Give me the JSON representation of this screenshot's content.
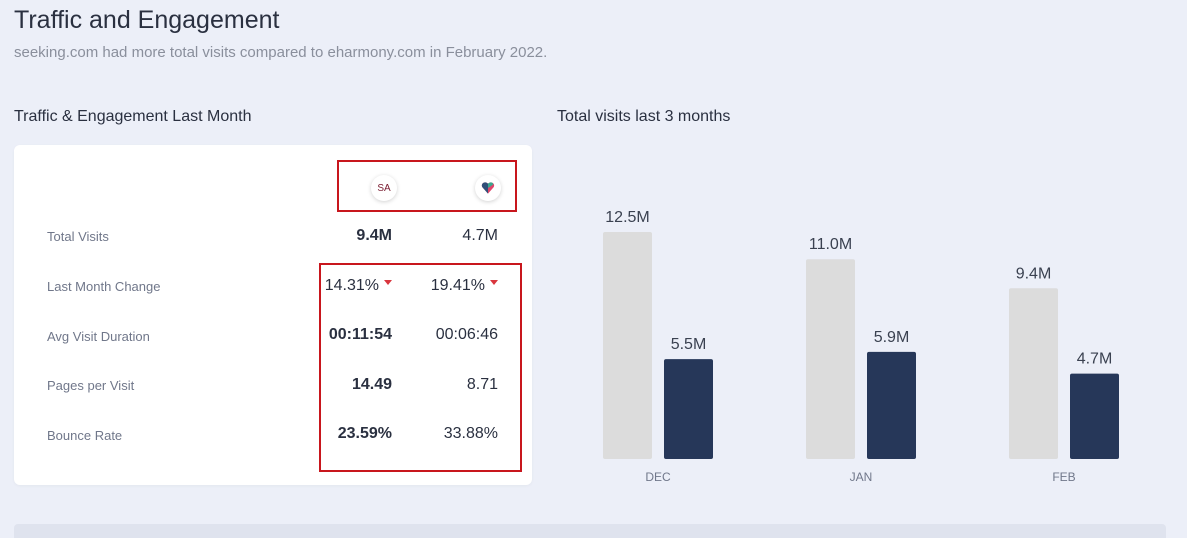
{
  "header": {
    "title": "Traffic and Engagement",
    "subtitle": "seeking.com had more total visits compared to eharmony.com in February 2022."
  },
  "engagement": {
    "title": "Traffic & Engagement Last Month",
    "sites": [
      {
        "logo_text": "SA",
        "icon": "seeking-logo-icon"
      },
      {
        "logo_text": "",
        "icon": "eharmony-heart-icon"
      }
    ],
    "metrics": [
      {
        "label": "Total Visits",
        "site_a": "9.4M",
        "site_b": "4.7M"
      },
      {
        "label": "Last Month Change",
        "site_a": "14.31%",
        "site_b": "19.41%",
        "trend": "down"
      },
      {
        "label": "Avg Visit Duration",
        "site_a": "00:11:54",
        "site_b": "00:06:46"
      },
      {
        "label": "Pages per Visit",
        "site_a": "14.49",
        "site_b": "8.71"
      },
      {
        "label": "Bounce Rate",
        "site_a": "23.59%",
        "site_b": "33.88%"
      }
    ],
    "colors": {
      "highlight_box": "#c8161d",
      "trend_down": "#d9363e"
    }
  },
  "visits_chart": {
    "title": "Total visits last 3 months"
  },
  "chart_data": {
    "type": "bar",
    "title": "Total visits last 3 months",
    "categories": [
      "DEC",
      "JAN",
      "FEB"
    ],
    "series": [
      {
        "values": [
          12.5,
          11.0,
          9.4
        ],
        "labels": [
          "12.5M",
          "11.0M",
          "9.4M"
        ],
        "color": "#dcdcdc"
      },
      {
        "values": [
          5.5,
          5.9,
          4.7
        ],
        "labels": [
          "5.5M",
          "5.9M",
          "4.7M"
        ],
        "color": "#263759"
      }
    ],
    "ylim": [
      0,
      12.5
    ],
    "unit": "M",
    "grid": false,
    "legend": "none"
  }
}
